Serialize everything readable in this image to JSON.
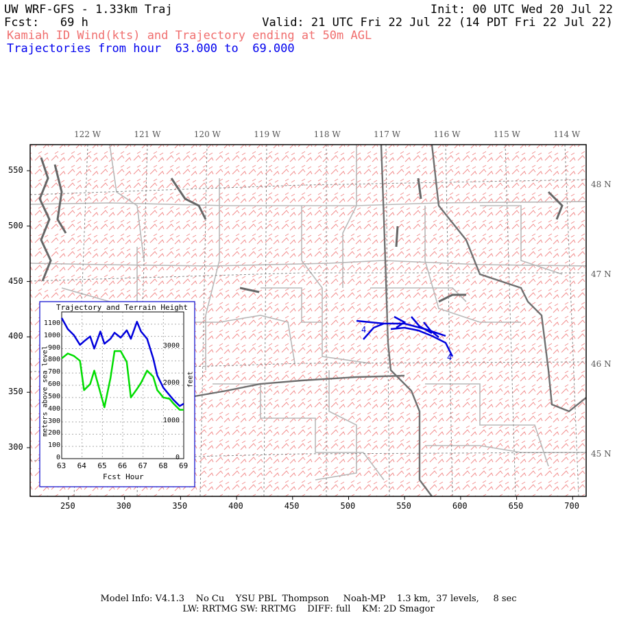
{
  "header": {
    "model_title": "UW WRF-GFS - 1.33km Traj",
    "init": "Init: 00 UTC Wed 20 Jul 22",
    "fcst": "Fcst:   69 h",
    "valid": "Valid: 21 UTC Fri 22 Jul 22 (14 PDT Fri 22 Jul 22)",
    "subtitle_red": "Kamiah ID Wind(kts) and Trajectory ending at 50m AGL",
    "subtitle_blue": "Trajectories from hour  63.000 to  69.000"
  },
  "map": {
    "x_ticks": [
      "250",
      "300",
      "350",
      "400",
      "450",
      "500",
      "550",
      "600",
      "650",
      "700"
    ],
    "y_ticks": [
      "550",
      "500",
      "450",
      "400",
      "350",
      "300"
    ],
    "lon_labels": [
      "122 W",
      "121 W",
      "120 W",
      "119 W",
      "118 W",
      "117 W",
      "116 W",
      "115 W",
      "114 W"
    ],
    "lat_labels": [
      "48 N",
      "47 N",
      "46 N",
      "45 N"
    ],
    "trajectory_markers": [
      "4",
      "4"
    ],
    "colors": {
      "wind_barbs": "#f08080",
      "county_lines": "#b8b8b8",
      "state_lines": "#777777",
      "water": "#666666",
      "trajectory": "#0000dd",
      "terrain_line": "#00dd00"
    }
  },
  "inset": {
    "title": "Trajectory and Terrain Height",
    "xlabel": "Fcst Hour",
    "ylabel_left": "meters above sea level",
    "ylabel_right": "feet",
    "x_ticks": [
      "63",
      "64",
      "65",
      "66",
      "67",
      "68",
      "69"
    ],
    "y_ticks_m": [
      "1100",
      "1000",
      "900",
      "800",
      "700",
      "600",
      "500",
      "400",
      "300",
      "200",
      "100",
      "0"
    ],
    "y_ticks_ft": [
      "3000",
      "2000",
      "1000",
      "0"
    ]
  },
  "chart_data": {
    "type": "line",
    "title": "Trajectory and Terrain Height",
    "xlabel": "Fcst Hour",
    "ylabel": "meters above sea level",
    "xlim": [
      63,
      69
    ],
    "ylim": [
      0,
      1200
    ],
    "grid": true,
    "series": [
      {
        "color": "#0000dd",
        "x": [
          63.0,
          63.3,
          63.6,
          63.9,
          64.1,
          64.4,
          64.6,
          64.9,
          65.1,
          65.4,
          65.6,
          65.9,
          66.2,
          66.4,
          66.7,
          66.9,
          67.2,
          67.5,
          67.7,
          68.0,
          68.3,
          68.5,
          68.8,
          69.0
        ],
        "y": [
          1150,
          1060,
          1010,
          930,
          960,
          1000,
          900,
          1040,
          940,
          980,
          1030,
          990,
          1050,
          980,
          1120,
          1040,
          980,
          820,
          680,
          580,
          520,
          480,
          430,
          450
        ]
      },
      {
        "color": "#00dd00",
        "x": [
          63.0,
          63.3,
          63.6,
          63.9,
          64.1,
          64.4,
          64.6,
          64.9,
          65.1,
          65.4,
          65.6,
          65.9,
          66.2,
          66.4,
          66.7,
          66.9,
          67.2,
          67.5,
          67.7,
          68.0,
          68.3,
          68.5,
          68.8,
          69.0
        ],
        "y": [
          820,
          860,
          840,
          800,
          560,
          610,
          720,
          540,
          420,
          660,
          880,
          880,
          790,
          500,
          570,
          620,
          720,
          670,
          560,
          500,
          490,
          450,
          400,
          400
        ]
      }
    ]
  },
  "footer": {
    "line1": "Model Info: V4.1.3    No Cu    YSU PBL  Thompson     Noah-MP    1.3 km,  37 levels,     8 sec",
    "line2": "LW: RRTMG SW: RRTMG    DIFF: full    KM: 2D Smagor"
  }
}
